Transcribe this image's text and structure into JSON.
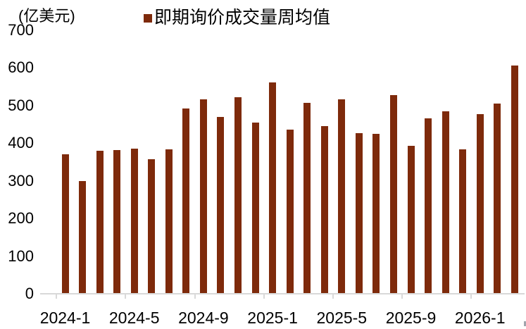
{
  "chart_data": {
    "type": "bar",
    "title": "",
    "unit_label": "(亿美元)",
    "legend_label": "即期询价成交量周均值",
    "legend_position": "top",
    "grid": false,
    "categories": [
      "2024-1",
      "2024-2",
      "2024-3",
      "2024-4",
      "2024-5",
      "2024-6",
      "2024-7",
      "2024-8",
      "2024-9",
      "2024-10",
      "2024-11",
      "2024-12",
      "2025-1",
      "2025-2",
      "2025-3",
      "2025-4",
      "2025-5",
      "2025-6",
      "2025-7",
      "2025-8",
      "2025-9",
      "2025-10",
      "2025-11",
      "2025-12",
      "2026-1",
      "2026-2",
      "2026-3"
    ],
    "values": [
      371,
      300,
      380,
      381,
      386,
      358,
      384,
      492,
      517,
      469,
      522,
      455,
      561,
      436,
      507,
      446,
      517,
      427,
      425,
      528,
      394,
      466,
      484,
      383,
      478,
      506,
      607
    ],
    "x_tick_labels": [
      "2024-1",
      "2024-5",
      "2024-9",
      "2025-1",
      "2025-5",
      "2025-9",
      "2026-1"
    ],
    "x_tick_indices": [
      0,
      4,
      8,
      12,
      16,
      20,
      24
    ],
    "y_ticks": [
      0,
      100,
      200,
      300,
      400,
      500,
      600,
      700
    ],
    "ylim": [
      0,
      700
    ],
    "xlabel": "",
    "ylabel": "亿美元",
    "colors": {
      "bar": "#7E2A0B",
      "axis": "#D9D9D9",
      "text": "#000000"
    }
  }
}
